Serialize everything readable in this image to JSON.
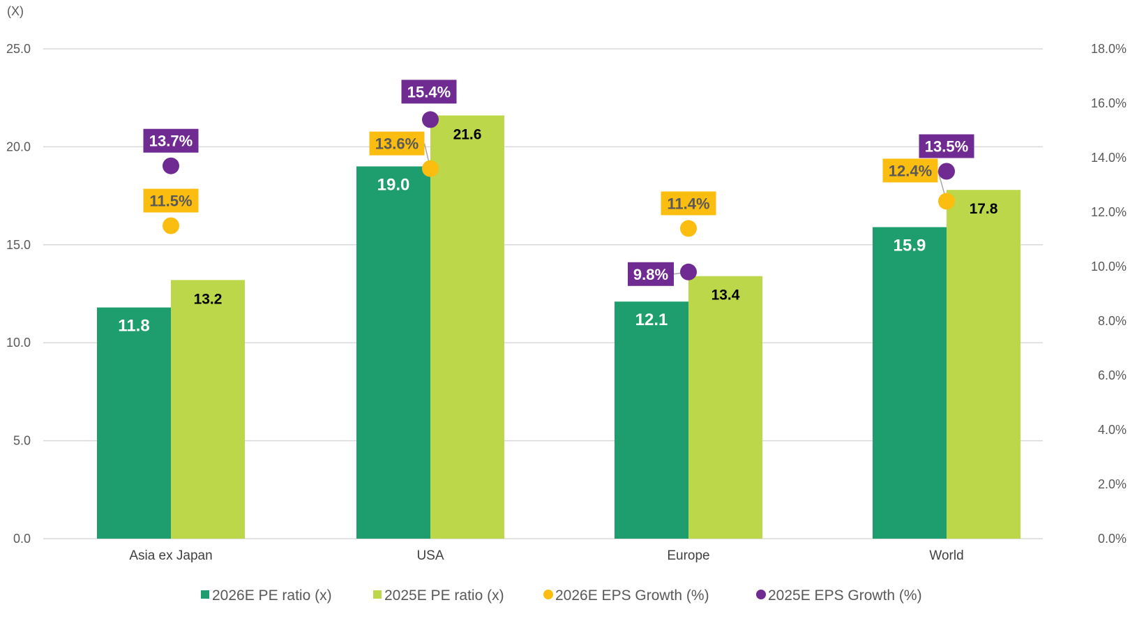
{
  "chart_data": {
    "type": "bar",
    "y_unit_label": "(X)",
    "categories": [
      "Asia ex Japan",
      "USA",
      "Europe",
      "World"
    ],
    "y_left": {
      "min": 0,
      "max": 25,
      "ticks": [
        "0.0",
        "5.0",
        "10.0",
        "15.0",
        "20.0",
        "25.0"
      ]
    },
    "y_right": {
      "min": 0,
      "max": 18,
      "ticks": [
        "0.0%",
        "2.0%",
        "4.0%",
        "6.0%",
        "8.0%",
        "10.0%",
        "12.0%",
        "14.0%",
        "16.0%",
        "18.0%"
      ]
    },
    "grid": true,
    "legend_position": "bottom",
    "series": [
      {
        "name": "2026E PE ratio (x)",
        "kind": "bar",
        "axis": "left",
        "color": "#1e9e6e",
        "values": [
          11.8,
          19.0,
          12.1,
          15.9
        ],
        "labels": [
          "11.8",
          "19.0",
          "12.1",
          "15.9"
        ]
      },
      {
        "name": "2025E PE ratio (x)",
        "kind": "bar",
        "axis": "left",
        "color": "#bdd74a",
        "values": [
          13.2,
          21.6,
          13.4,
          17.8
        ],
        "labels": [
          "13.2",
          "21.6",
          "13.4",
          "17.8"
        ]
      },
      {
        "name": "2026E EPS Growth (%)",
        "kind": "dot",
        "axis": "right",
        "color": "#fbbd10",
        "values": [
          11.5,
          13.6,
          11.4,
          12.4
        ],
        "labels": [
          "11.5%",
          "13.6%",
          "11.4%",
          "12.4%"
        ]
      },
      {
        "name": "2025E EPS Growth (%)",
        "kind": "dot",
        "axis": "right",
        "color": "#6f2b91",
        "values": [
          13.7,
          15.4,
          9.8,
          13.5
        ],
        "labels": [
          "13.7%",
          "15.4%",
          "9.8%",
          "13.5%"
        ]
      }
    ]
  }
}
